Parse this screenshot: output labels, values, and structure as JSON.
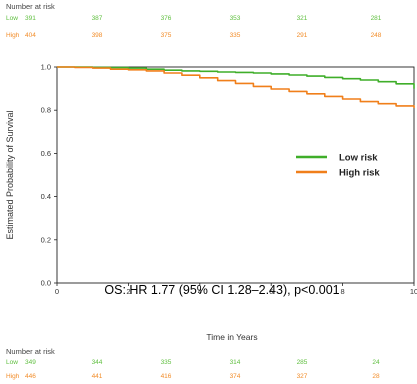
{
  "top_risk_table": {
    "title": "Number at risk",
    "rows": [
      {
        "label": "Low",
        "values": [
          "391",
          "387",
          "376",
          "353",
          "321",
          "281"
        ],
        "color": "#5fbf3f"
      },
      {
        "label": "High",
        "values": [
          "404",
          "398",
          "375",
          "335",
          "291",
          "248"
        ],
        "color": "#f28c28"
      }
    ]
  },
  "bottom_risk_table": {
    "title": "Number at risk",
    "rows": [
      {
        "label": "Low",
        "values": [
          "349",
          "344",
          "335",
          "314",
          "285",
          "24"
        ],
        "color": "#5fbf3f"
      },
      {
        "label": "High",
        "values": [
          "446",
          "441",
          "416",
          "374",
          "327",
          "28"
        ],
        "color": "#f28c28"
      }
    ]
  },
  "chart_data": {
    "type": "line",
    "xlabel": "Time in Years",
    "ylabel": "Estimated Probability of Survival",
    "xlim": [
      0,
      10
    ],
    "ylim": [
      0,
      1.0
    ],
    "xticks": [
      "0",
      "2",
      "4",
      "6",
      "8",
      "10"
    ],
    "yticks": [
      "0.0",
      "0.2",
      "0.4",
      "0.6",
      "0.8",
      "1.0"
    ],
    "grid": false,
    "legend_placement": "right",
    "annotation": "OS: HR 1.77 (95% CI 1.28–2.43), p<0.001",
    "series": [
      {
        "name": "Low risk",
        "color": "#3fae29",
        "x": [
          0,
          0.5,
          1,
          1.5,
          2,
          2.5,
          3,
          3.5,
          4,
          4.5,
          5,
          5.5,
          6,
          6.5,
          7,
          7.5,
          8,
          8.5,
          9,
          9.5,
          10
        ],
        "y": [
          1.0,
          1.0,
          0.998,
          0.997,
          0.995,
          0.99,
          0.985,
          0.982,
          0.98,
          0.977,
          0.975,
          0.972,
          0.968,
          0.963,
          0.958,
          0.952,
          0.946,
          0.94,
          0.932,
          0.922,
          0.9
        ]
      },
      {
        "name": "High risk",
        "color": "#f07f1a",
        "x": [
          0,
          0.5,
          1,
          1.5,
          2,
          2.5,
          3,
          3.5,
          4,
          4.5,
          5,
          5.5,
          6,
          6.5,
          7,
          7.5,
          8,
          8.5,
          9,
          9.5,
          10
        ],
        "y": [
          1.0,
          0.998,
          0.995,
          0.99,
          0.987,
          0.982,
          0.972,
          0.962,
          0.95,
          0.937,
          0.924,
          0.91,
          0.898,
          0.887,
          0.876,
          0.864,
          0.852,
          0.84,
          0.83,
          0.82,
          0.81
        ]
      }
    ]
  }
}
